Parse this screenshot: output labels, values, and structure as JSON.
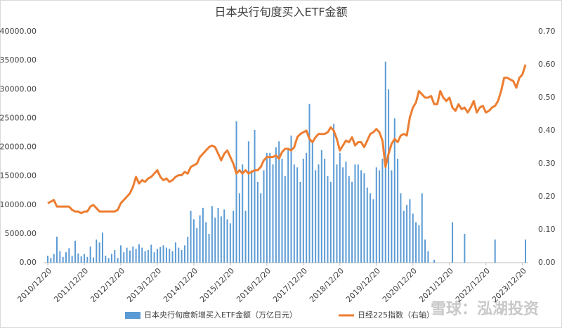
{
  "chart_data": {
    "type": "bar_line",
    "title": "日本央行旬度买入ETF金额",
    "watermark": "雪球：泓湖投资",
    "categories": [
      "2010/12/20",
      null,
      null,
      null,
      null,
      null,
      null,
      null,
      null,
      null,
      null,
      null,
      "2011/12/20",
      null,
      null,
      null,
      null,
      null,
      null,
      null,
      null,
      null,
      null,
      null,
      "2012/12/20",
      null,
      null,
      null,
      null,
      null,
      null,
      null,
      null,
      null,
      null,
      null,
      "2013/12/20",
      null,
      null,
      null,
      null,
      null,
      null,
      null,
      null,
      null,
      null,
      null,
      "2014/12/20",
      null,
      null,
      null,
      null,
      null,
      null,
      null,
      null,
      null,
      null,
      null,
      "2015/12/20",
      null,
      null,
      null,
      null,
      null,
      null,
      null,
      null,
      null,
      null,
      null,
      "2016/12/20",
      null,
      null,
      null,
      null,
      null,
      null,
      null,
      null,
      null,
      null,
      null,
      "2017/12/20",
      null,
      null,
      null,
      null,
      null,
      null,
      null,
      null,
      null,
      null,
      null,
      "2018/12/20",
      null,
      null,
      null,
      null,
      null,
      null,
      null,
      null,
      null,
      null,
      null,
      "2019/12/20",
      null,
      null,
      null,
      null,
      null,
      null,
      null,
      null,
      null,
      null,
      null,
      "2020/12/20",
      null,
      null,
      null,
      null,
      null,
      null,
      null,
      null,
      null,
      null,
      null,
      "2021/12/20",
      null,
      null,
      null,
      null,
      null,
      null,
      null,
      null,
      null,
      null,
      null,
      "2022/12/20",
      null,
      null,
      null,
      null,
      null,
      null,
      null,
      null,
      null,
      null,
      null,
      "2023/12/20",
      null
    ],
    "series": [
      {
        "name": "日本央行旬度新增买入ETF金额（万亿日元）",
        "type": "bar",
        "color": "#5b9bd5",
        "axis": "y",
        "values": [
          1200,
          800,
          1500,
          4500,
          2000,
          1000,
          1800,
          2500,
          1200,
          3800,
          1600,
          1100,
          1500,
          1000,
          2800,
          900,
          4000,
          3500,
          5200,
          1200,
          800,
          1500,
          2200,
          800,
          3000,
          1800,
          2600,
          2100,
          2800,
          2400,
          3200,
          2600,
          2000,
          2200,
          3100,
          1800,
          2400,
          2700,
          3000,
          2600,
          2400,
          2000,
          3500,
          2600,
          2200,
          3000,
          4500,
          9000,
          7500,
          6000,
          8200,
          9500,
          7000,
          5000,
          9800,
          7800,
          9500,
          8000,
          9200,
          7500,
          6800,
          9000,
          24500,
          12000,
          17000,
          9000,
          21000,
          16000,
          23000,
          14000,
          12000,
          16000,
          19000,
          19000,
          17000,
          20000,
          21000,
          18000,
          15000,
          19500,
          22000,
          17000,
          16500,
          14000,
          18000,
          19000,
          27500,
          21000,
          16000,
          17000,
          19500,
          18000,
          15000,
          14000,
          24000,
          17000,
          19000,
          16500,
          17500,
          15000,
          14000,
          17000,
          17000,
          16000,
          15500,
          13000,
          12000,
          11000,
          16500,
          16000,
          18000,
          34800,
          30000,
          16000,
          25000,
          18000,
          12000,
          9000,
          10000,
          11000,
          8500,
          7000,
          6500,
          12000,
          4000,
          2000,
          0,
          500,
          0,
          0,
          0,
          0,
          0,
          7000,
          0,
          0,
          0,
          5000,
          0,
          0,
          0,
          0,
          0,
          0,
          0,
          0,
          0,
          4000,
          0,
          0,
          0,
          0,
          0,
          0,
          0,
          0,
          0,
          4000
        ]
      },
      {
        "name": "日经225指数（右轴）",
        "type": "line",
        "color": "#ed7d31",
        "axis": "y2",
        "values": [
          0.18,
          0.185,
          0.19,
          0.17,
          0.17,
          0.17,
          0.17,
          0.17,
          0.16,
          0.155,
          0.155,
          0.15,
          0.155,
          0.155,
          0.17,
          0.175,
          0.165,
          0.155,
          0.155,
          0.155,
          0.155,
          0.155,
          0.155,
          0.16,
          0.18,
          0.19,
          0.2,
          0.21,
          0.23,
          0.26,
          0.24,
          0.25,
          0.245,
          0.255,
          0.26,
          0.27,
          0.28,
          0.26,
          0.25,
          0.255,
          0.245,
          0.25,
          0.26,
          0.265,
          0.265,
          0.275,
          0.27,
          0.29,
          0.295,
          0.3,
          0.32,
          0.33,
          0.34,
          0.35,
          0.355,
          0.35,
          0.33,
          0.31,
          0.33,
          0.34,
          0.32,
          0.3,
          0.27,
          0.28,
          0.27,
          0.28,
          0.27,
          0.275,
          0.28,
          0.28,
          0.29,
          0.31,
          0.32,
          0.32,
          0.32,
          0.325,
          0.315,
          0.335,
          0.345,
          0.345,
          0.34,
          0.35,
          0.38,
          0.39,
          0.395,
          0.4,
          0.375,
          0.365,
          0.38,
          0.39,
          0.39,
          0.39,
          0.395,
          0.41,
          0.4,
          0.375,
          0.34,
          0.355,
          0.37,
          0.365,
          0.38,
          0.355,
          0.365,
          0.365,
          0.35,
          0.37,
          0.39,
          0.395,
          0.405,
          0.395,
          0.37,
          0.29,
          0.33,
          0.36,
          0.375,
          0.365,
          0.385,
          0.39,
          0.385,
          0.44,
          0.47,
          0.485,
          0.52,
          0.51,
          0.5,
          0.5,
          0.505,
          0.48,
          0.48,
          0.52,
          0.5,
          0.49,
          0.5,
          0.47,
          0.46,
          0.48,
          0.465,
          0.47,
          0.455,
          0.47,
          0.49,
          0.455,
          0.47,
          0.475,
          0.455,
          0.46,
          0.47,
          0.475,
          0.49,
          0.52,
          0.56,
          0.56,
          0.555,
          0.55,
          0.53,
          0.56,
          0.57,
          0.6
        ]
      }
    ],
    "ylim": [
      0,
      40000
    ],
    "yticks": [
      {
        "value": 0,
        "label": "0.00"
      },
      {
        "value": 5000,
        "label": "5000.00"
      },
      {
        "value": 10000,
        "label": "10000.00"
      },
      {
        "value": 15000,
        "label": "15000.00"
      },
      {
        "value": 20000,
        "label": "20000.00"
      },
      {
        "value": 25000,
        "label": "25000.00"
      },
      {
        "value": 30000,
        "label": "30000.00"
      },
      {
        "value": 35000,
        "label": "35000.00"
      },
      {
        "value": 40000,
        "label": "40000.00"
      }
    ],
    "y2lim": [
      0,
      0.7
    ],
    "y2ticks": [
      {
        "value": 0,
        "label": "0.00"
      },
      {
        "value": 0.1,
        "label": "0.10"
      },
      {
        "value": 0.2,
        "label": "0.20"
      },
      {
        "value": 0.3,
        "label": "0.30"
      },
      {
        "value": 0.4,
        "label": "0.40"
      },
      {
        "value": 0.5,
        "label": "0.50"
      },
      {
        "value": 0.6,
        "label": "0.60"
      },
      {
        "value": 0.7,
        "label": "0.70"
      }
    ],
    "grid": false,
    "legend": "bottom"
  }
}
